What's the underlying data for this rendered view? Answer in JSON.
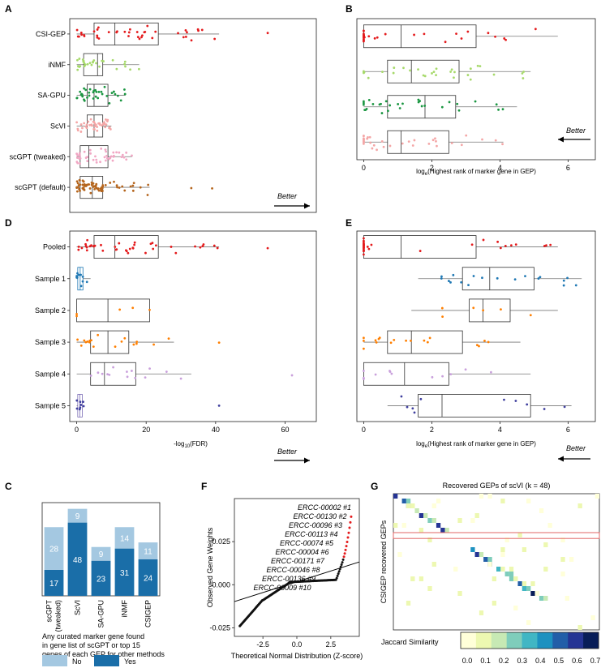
{
  "figure": {
    "panel_labels": [
      "A",
      "B",
      "C",
      "D",
      "E",
      "F",
      "G"
    ],
    "better_label": "Better"
  },
  "chart_data": [
    {
      "panel": "A",
      "type": "boxplot",
      "orientation": "horizontal",
      "categories": [
        "CSI-GEP",
        "iNMF",
        "SA-GPU",
        "ScVI",
        "scGPT (tweaked)",
        "scGPT (default)"
      ],
      "colors": [
        "#e41a1c",
        "#a6d96a",
        "#1a9641",
        "#f4a6a6",
        "#f1a7c4",
        "#b5651d"
      ],
      "xlim": [
        -2,
        69
      ],
      "stats": [
        {
          "whislo": 0,
          "q1": 5,
          "med": 11,
          "q3": 23.5,
          "whishi": 41
        },
        {
          "whislo": 0,
          "q1": 2,
          "med": 6,
          "q3": 7.5,
          "whishi": 18
        },
        {
          "whislo": 0,
          "q1": 3,
          "med": 5,
          "q3": 9,
          "whishi": 14
        },
        {
          "whislo": 0,
          "q1": 3,
          "med": 5,
          "q3": 7.5,
          "whishi": 10
        },
        {
          "whislo": 0,
          "q1": 1,
          "med": 3.5,
          "q3": 9,
          "whishi": 16
        },
        {
          "whislo": 0,
          "q1": 1,
          "med": 4.5,
          "q3": 7.5,
          "whishi": 21
        }
      ],
      "outliers": [
        [
          55
        ],
        [],
        [],
        [],
        [],
        [
          39,
          33
        ]
      ],
      "xlabel": "",
      "arrow": "right"
    },
    {
      "panel": "B",
      "type": "boxplot",
      "orientation": "horizontal",
      "categories": [
        "CSI-GEP",
        "iNMF",
        "SA-GPU",
        "ScVI"
      ],
      "colors": [
        "#e41a1c",
        "#a6d96a",
        "#1a9641",
        "#f4a6a6"
      ],
      "xlim": [
        -0.2,
        6.8
      ],
      "xticks": [
        0,
        2,
        4,
        6
      ],
      "stats": [
        {
          "whislo": 0,
          "q1": 0,
          "med": 1.1,
          "q3": 3.3,
          "whishi": 5.7
        },
        {
          "whislo": 0,
          "q1": 0.7,
          "med": 1.4,
          "q3": 2.8,
          "whishi": 4.9
        },
        {
          "whislo": 0,
          "q1": 0.7,
          "med": 1.8,
          "q3": 2.7,
          "whishi": 4.5
        },
        {
          "whislo": 0,
          "q1": 0.7,
          "med": 1.1,
          "q3": 2.5,
          "whishi": 4.1
        }
      ],
      "xlabel": "loge(Highest rank of marker gene in GEP)",
      "arrow": "left"
    },
    {
      "panel": "C",
      "type": "bar",
      "stacked": true,
      "categories": [
        "scGPT (tweaked)",
        "ScVI",
        "SA-GPU",
        "iNMF",
        "CSIGEP"
      ],
      "series": [
        {
          "name": "Yes",
          "color": "#1a6ea8",
          "values": [
            17,
            48,
            23,
            31,
            24
          ]
        },
        {
          "name": "No",
          "color": "#a4c8e1",
          "values": [
            28,
            9,
            9,
            14,
            11
          ]
        }
      ],
      "caption": "Any curated marker gene found in gene list of scGPT or top 15 genes of each GEP for other methods",
      "legend": [
        "No",
        "Yes"
      ]
    },
    {
      "panel": "D",
      "type": "boxplot",
      "orientation": "horizontal",
      "categories": [
        "Pooled",
        "Sample 1",
        "Sample 2",
        "Sample 3",
        "Sample 4",
        "Sample 5"
      ],
      "colors": [
        "#e41a1c",
        "#1f78b4",
        "#ff7f00",
        "#ff7f00",
        "#c9a0dc",
        "#3f3f9e"
      ],
      "xlim": [
        -2,
        69
      ],
      "xticks": [
        0,
        20,
        40,
        60
      ],
      "stats": [
        {
          "whislo": 0,
          "q1": 5,
          "med": 11,
          "q3": 23.5,
          "whishi": 41
        },
        {
          "whislo": 0,
          "q1": 0.3,
          "med": 1,
          "q3": 1.8,
          "whishi": 4
        },
        {
          "whislo": 0,
          "q1": 0,
          "med": 9,
          "q3": 21,
          "whishi": 21
        },
        {
          "whislo": 0,
          "q1": 4,
          "med": 9,
          "q3": 15,
          "whishi": 28
        },
        {
          "whislo": 0,
          "q1": 4,
          "med": 8,
          "q3": 17,
          "whishi": 33
        },
        {
          "whislo": 0,
          "q1": 0.3,
          "med": 0.9,
          "q3": 1.6,
          "whishi": 2.2
        }
      ],
      "outliers": [
        [
          55
        ],
        [],
        [],
        [
          41
        ],
        [
          62
        ],
        [
          41
        ]
      ],
      "xlabel": "-log10(FDR)",
      "arrow": "right"
    },
    {
      "panel": "E",
      "type": "boxplot",
      "orientation": "horizontal",
      "categories": [
        "Pooled",
        "Sample 1",
        "Sample 2",
        "Sample 3",
        "Sample 4",
        "Sample 5"
      ],
      "colors": [
        "#e41a1c",
        "#1f78b4",
        "#ff7f00",
        "#ff7f00",
        "#c9a0dc",
        "#3f3f9e"
      ],
      "xlim": [
        -0.2,
        6.8
      ],
      "xticks": [
        0,
        2,
        4,
        6
      ],
      "stats": [
        {
          "whislo": 0,
          "q1": 0,
          "med": 1.1,
          "q3": 3.3,
          "whishi": 5.7
        },
        {
          "whislo": 1.6,
          "q1": 2.9,
          "med": 3.7,
          "q3": 5.0,
          "whishi": 6.4
        },
        {
          "whislo": 1.4,
          "q1": 3.1,
          "med": 3.5,
          "q3": 4.3,
          "whishi": 5.7
        },
        {
          "whislo": 0,
          "q1": 0.7,
          "med": 1.4,
          "q3": 2.9,
          "whishi": 4.6
        },
        {
          "whislo": 0,
          "q1": 0,
          "med": 1.2,
          "q3": 2.5,
          "whishi": 4.9
        },
        {
          "whislo": 0.7,
          "q1": 1.6,
          "med": 2.3,
          "q3": 4.9,
          "whishi": 6.1
        }
      ],
      "xlabel": "loge(Highest rank of marker gene in GEP)",
      "arrow": "left"
    },
    {
      "panel": "F",
      "type": "scatter",
      "subtype": "qq",
      "xlabel": "Theoretical Normal Distribution (Z-score)",
      "ylabel": "Observed Gene Weights",
      "xlim": [
        -4.6,
        4.6
      ],
      "ylim": [
        -0.03,
        0.05
      ],
      "xticks": [
        -2.5,
        0.0,
        2.5
      ],
      "xtick_labels": [
        "-2.5",
        "0.0",
        "2.5"
      ],
      "yticks": [
        -0.025,
        0.0,
        0.025
      ],
      "ytick_labels": [
        "-0.025",
        "0.000",
        "0.025"
      ],
      "reference_line": {
        "intercept": 0.0017,
        "slope": 0.0025
      },
      "annotations": [
        "ERCC-00002 #1",
        "ERCC-00130 #2",
        "ERCC-00096 #3",
        "ERCC-00113 #4",
        "ERCC-00074 #5",
        "ERCC-00004 #6",
        "ERCC-00171 #7",
        "ERCC-00046 #8",
        "ERCC-00136 #9",
        "ERCC-00009 #10"
      ]
    },
    {
      "panel": "G",
      "type": "heatmap",
      "title": "Recovered GEPs of scVI (k = 48)",
      "ylabel": "CSIGEP recovered GEPs",
      "colorbar_label": "Jaccard Similarity",
      "colorbar_ticks": [
        "0.0",
        "0.1",
        "0.2",
        "0.3",
        "0.4",
        "0.5",
        "0.6",
        "0.7"
      ],
      "range": [
        0,
        0.7
      ],
      "colors": [
        "#ffffd9",
        "#edf8b1",
        "#c7e9b4",
        "#7fcdbb",
        "#41b6c4",
        "#1d91c0",
        "#225ea8",
        "#253494",
        "#081d58"
      ]
    }
  ]
}
